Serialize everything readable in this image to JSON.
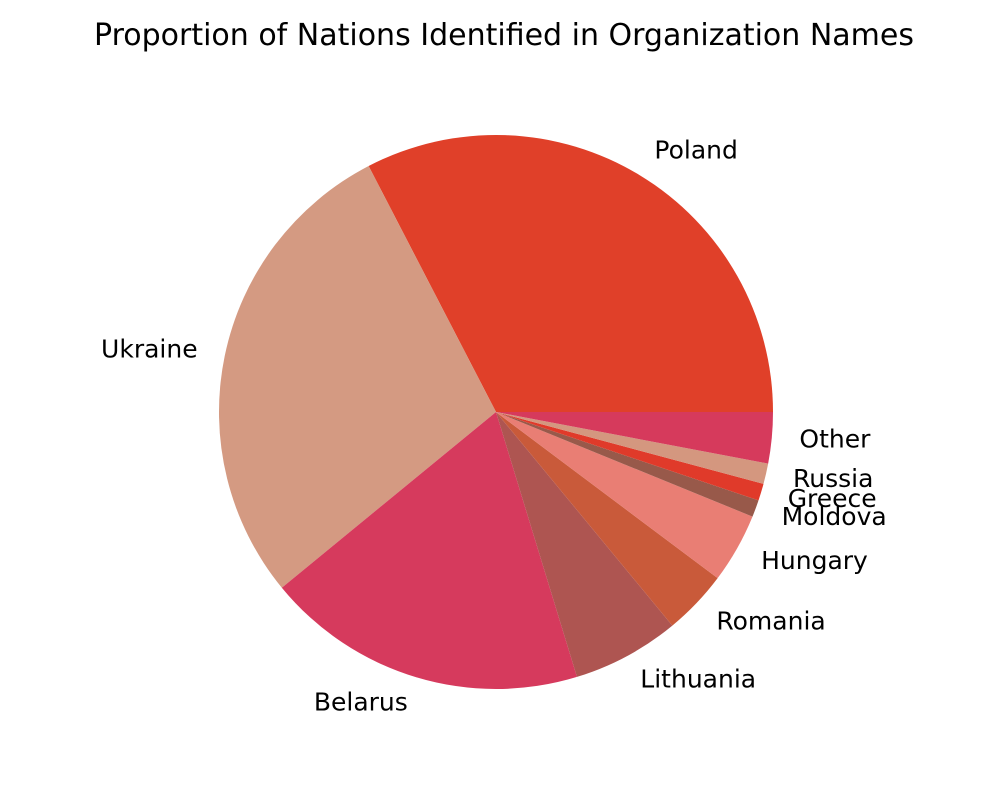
{
  "chart_data": {
    "type": "pie",
    "title": "Proportion of Nations Identified in Organization Names",
    "start_angle_deg": 0,
    "direction": "counterclockwise",
    "slices": [
      {
        "label": "Poland",
        "value": 32.8,
        "color": "#e04029"
      },
      {
        "label": "Ukraine",
        "value": 28.5,
        "color": "#d49a82"
      },
      {
        "label": "Belarus",
        "value": 18.9,
        "color": "#d63a5d"
      },
      {
        "label": "Lithuania",
        "value": 6.3,
        "color": "#ae5551"
      },
      {
        "label": "Romania",
        "value": 3.8,
        "color": "#c95a3a"
      },
      {
        "label": "Hungary",
        "value": 4.1,
        "color": "#e97e74"
      },
      {
        "label": "Moldova",
        "value": 1.0,
        "color": "#98594a"
      },
      {
        "label": "Greece",
        "value": 1.0,
        "color": "#e03a2a"
      },
      {
        "label": "Russia",
        "value": 1.2,
        "color": "#d4977f"
      },
      {
        "label": "Other",
        "value": 3.0,
        "color": "#d63a5c"
      }
    ]
  }
}
